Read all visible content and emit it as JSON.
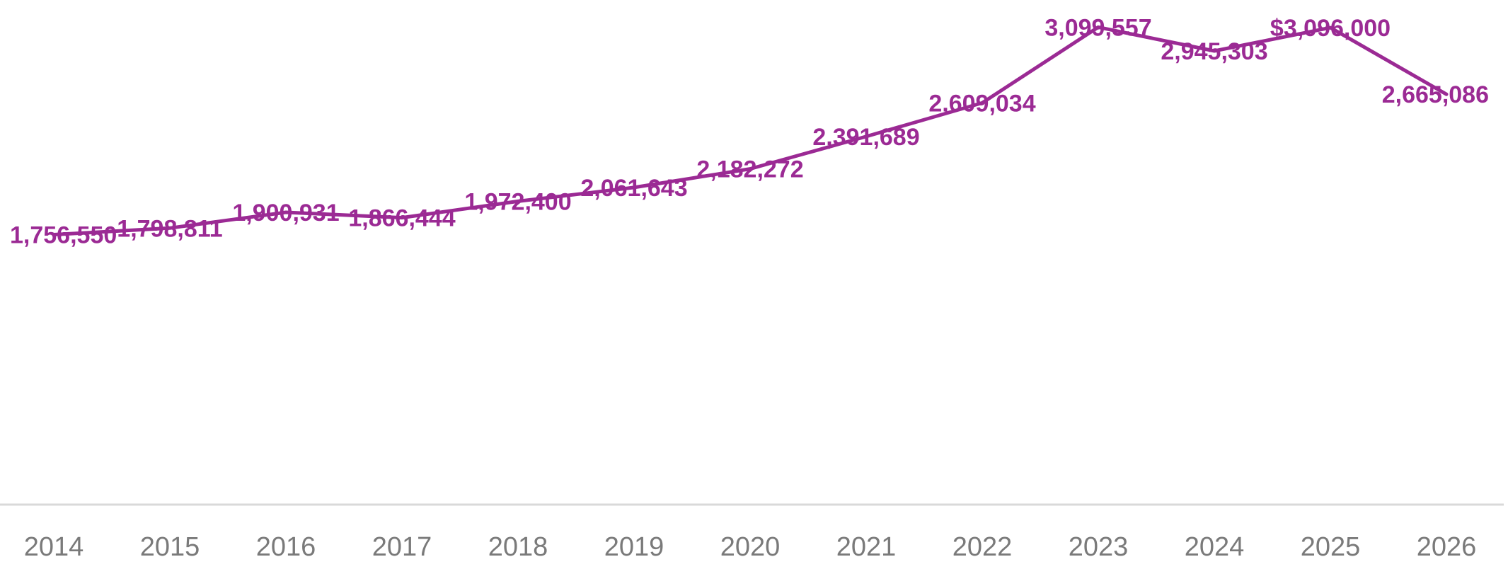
{
  "chart_data": {
    "type": "line",
    "title": "",
    "xlabel": "",
    "ylabel": "",
    "categories": [
      "2014",
      "2015",
      "2016",
      "2017",
      "2018",
      "2019",
      "2020",
      "2021",
      "2022",
      "2023",
      "2024",
      "2025",
      "2026"
    ],
    "series": [
      {
        "values": [
          1756550,
          1798811,
          1900931,
          1866444,
          1972400,
          2061643,
          2182272,
          2391689,
          2609034,
          3099557,
          2945303,
          3096000,
          2665086
        ],
        "labels": [
          "1,756,550",
          "1,798,811",
          "1,900,931",
          "1,866,444",
          "1,972,400",
          "2,061,643",
          "2,182,272",
          "2,391,689",
          "2,609,034",
          "3,099,557",
          "2,945,303",
          "$3,096,000",
          "2,665,086"
        ]
      }
    ],
    "ylim": [
      0,
      3100000
    ],
    "grid": false,
    "legend": "none",
    "line_color": "#9b2a94",
    "axis_color": "#d9d9d9",
    "tick_color": "#7a7a7a"
  }
}
